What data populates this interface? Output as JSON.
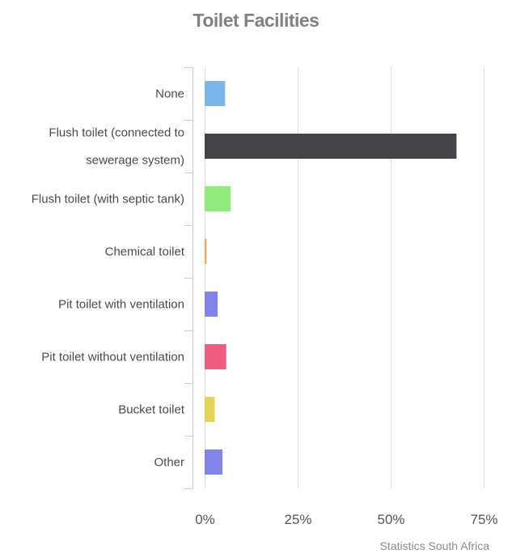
{
  "chart_data": {
    "type": "bar",
    "orientation": "horizontal",
    "title": "Toilet Facilities",
    "categories": [
      "None",
      "Flush toilet (connected to sewerage system)",
      "Flush toilet (with septic tank)",
      "Chemical toilet",
      "Pit toilet with ventilation",
      "Pit toilet without ventilation",
      "Bucket toilet",
      "Other"
    ],
    "category_lines": [
      [
        "None"
      ],
      [
        "Flush toilet (connected to",
        "sewerage system)"
      ],
      [
        "Flush toilet (with septic tank)"
      ],
      [
        "Chemical toilet"
      ],
      [
        "Pit toilet with ventilation"
      ],
      [
        "Pit toilet without ventilation"
      ],
      [
        "Bucket toilet"
      ],
      [
        "Other"
      ]
    ],
    "values": [
      5.5,
      67.7,
      7.0,
      0.5,
      3.5,
      5.8,
      2.7,
      4.8
    ],
    "colors": [
      "#7cb5ec",
      "#434348",
      "#90ed7d",
      "#f7a35c",
      "#8085e9",
      "#f15c80",
      "#e4d354",
      "#8085e8"
    ],
    "xlim": [
      0,
      75
    ],
    "xticks": [
      0,
      25,
      50,
      75
    ],
    "xtick_labels": [
      "0%",
      "25%",
      "50%",
      "75%"
    ],
    "grid": true,
    "legend": "none"
  },
  "credit": "Statistics South Africa"
}
